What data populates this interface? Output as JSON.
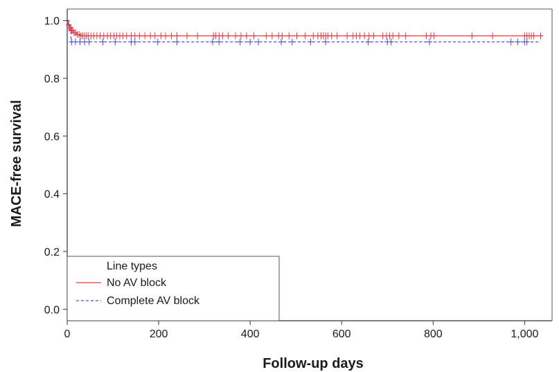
{
  "chart_data": {
    "type": "line",
    "title": "",
    "xlabel": "Follow-up days",
    "ylabel": "MACE-free survival",
    "xlim": [
      0,
      1060
    ],
    "ylim": [
      -0.04,
      1.04
    ],
    "x_ticks": [
      0,
      200,
      400,
      600,
      800,
      1000
    ],
    "x_tick_labels": [
      "0",
      "200",
      "400",
      "600",
      "800",
      "1,000"
    ],
    "y_ticks": [
      0.0,
      0.2,
      0.4,
      0.6,
      0.8,
      1.0
    ],
    "y_tick_labels": [
      "0.0",
      "0.2",
      "0.4",
      "0.6",
      "0.8",
      "1.0"
    ],
    "grid": false,
    "legend": {
      "title": "Line types",
      "placement": "bottom-left",
      "entries": [
        "No AV block",
        "Complete AV block"
      ]
    },
    "series": [
      {
        "name": "No AV block",
        "color": "#e8393f",
        "dash": "solid",
        "steps": [
          [
            0,
            1.0
          ],
          [
            2,
            0.985
          ],
          [
            5,
            0.975
          ],
          [
            9,
            0.966
          ],
          [
            14,
            0.958
          ],
          [
            20,
            0.952
          ],
          [
            28,
            0.947
          ],
          [
            1040,
            0.947
          ]
        ],
        "censor_x": [
          3,
          6,
          8,
          10,
          12,
          15,
          18,
          22,
          26,
          30,
          34,
          38,
          42,
          46,
          52,
          58,
          65,
          72,
          80,
          88,
          95,
          102,
          108,
          115,
          122,
          130,
          140,
          148,
          158,
          170,
          182,
          192,
          205,
          215,
          228,
          240,
          262,
          285,
          320,
          325,
          332,
          340,
          352,
          368,
          380,
          392,
          408,
          435,
          448,
          462,
          470,
          485,
          502,
          520,
          538,
          548,
          555,
          560,
          565,
          570,
          578,
          590,
          612,
          625,
          632,
          640,
          650,
          660,
          670,
          690,
          698,
          705,
          712,
          725,
          740,
          785,
          795,
          802,
          885,
          930,
          1000,
          1005,
          1010,
          1015,
          1020,
          1035
        ]
      },
      {
        "name": "Complete AV block",
        "color": "#4a4ae0",
        "dash": "dashed",
        "steps": [
          [
            0,
            1.0
          ],
          [
            4,
            0.962
          ],
          [
            8,
            0.926
          ],
          [
            1030,
            0.926
          ]
        ],
        "censor_x": [
          10,
          18,
          28,
          38,
          48,
          78,
          105,
          140,
          148,
          198,
          240,
          318,
          332,
          378,
          400,
          418,
          468,
          492,
          532,
          565,
          658,
          700,
          708,
          792,
          970,
          985,
          1000,
          1005
        ]
      }
    ]
  }
}
